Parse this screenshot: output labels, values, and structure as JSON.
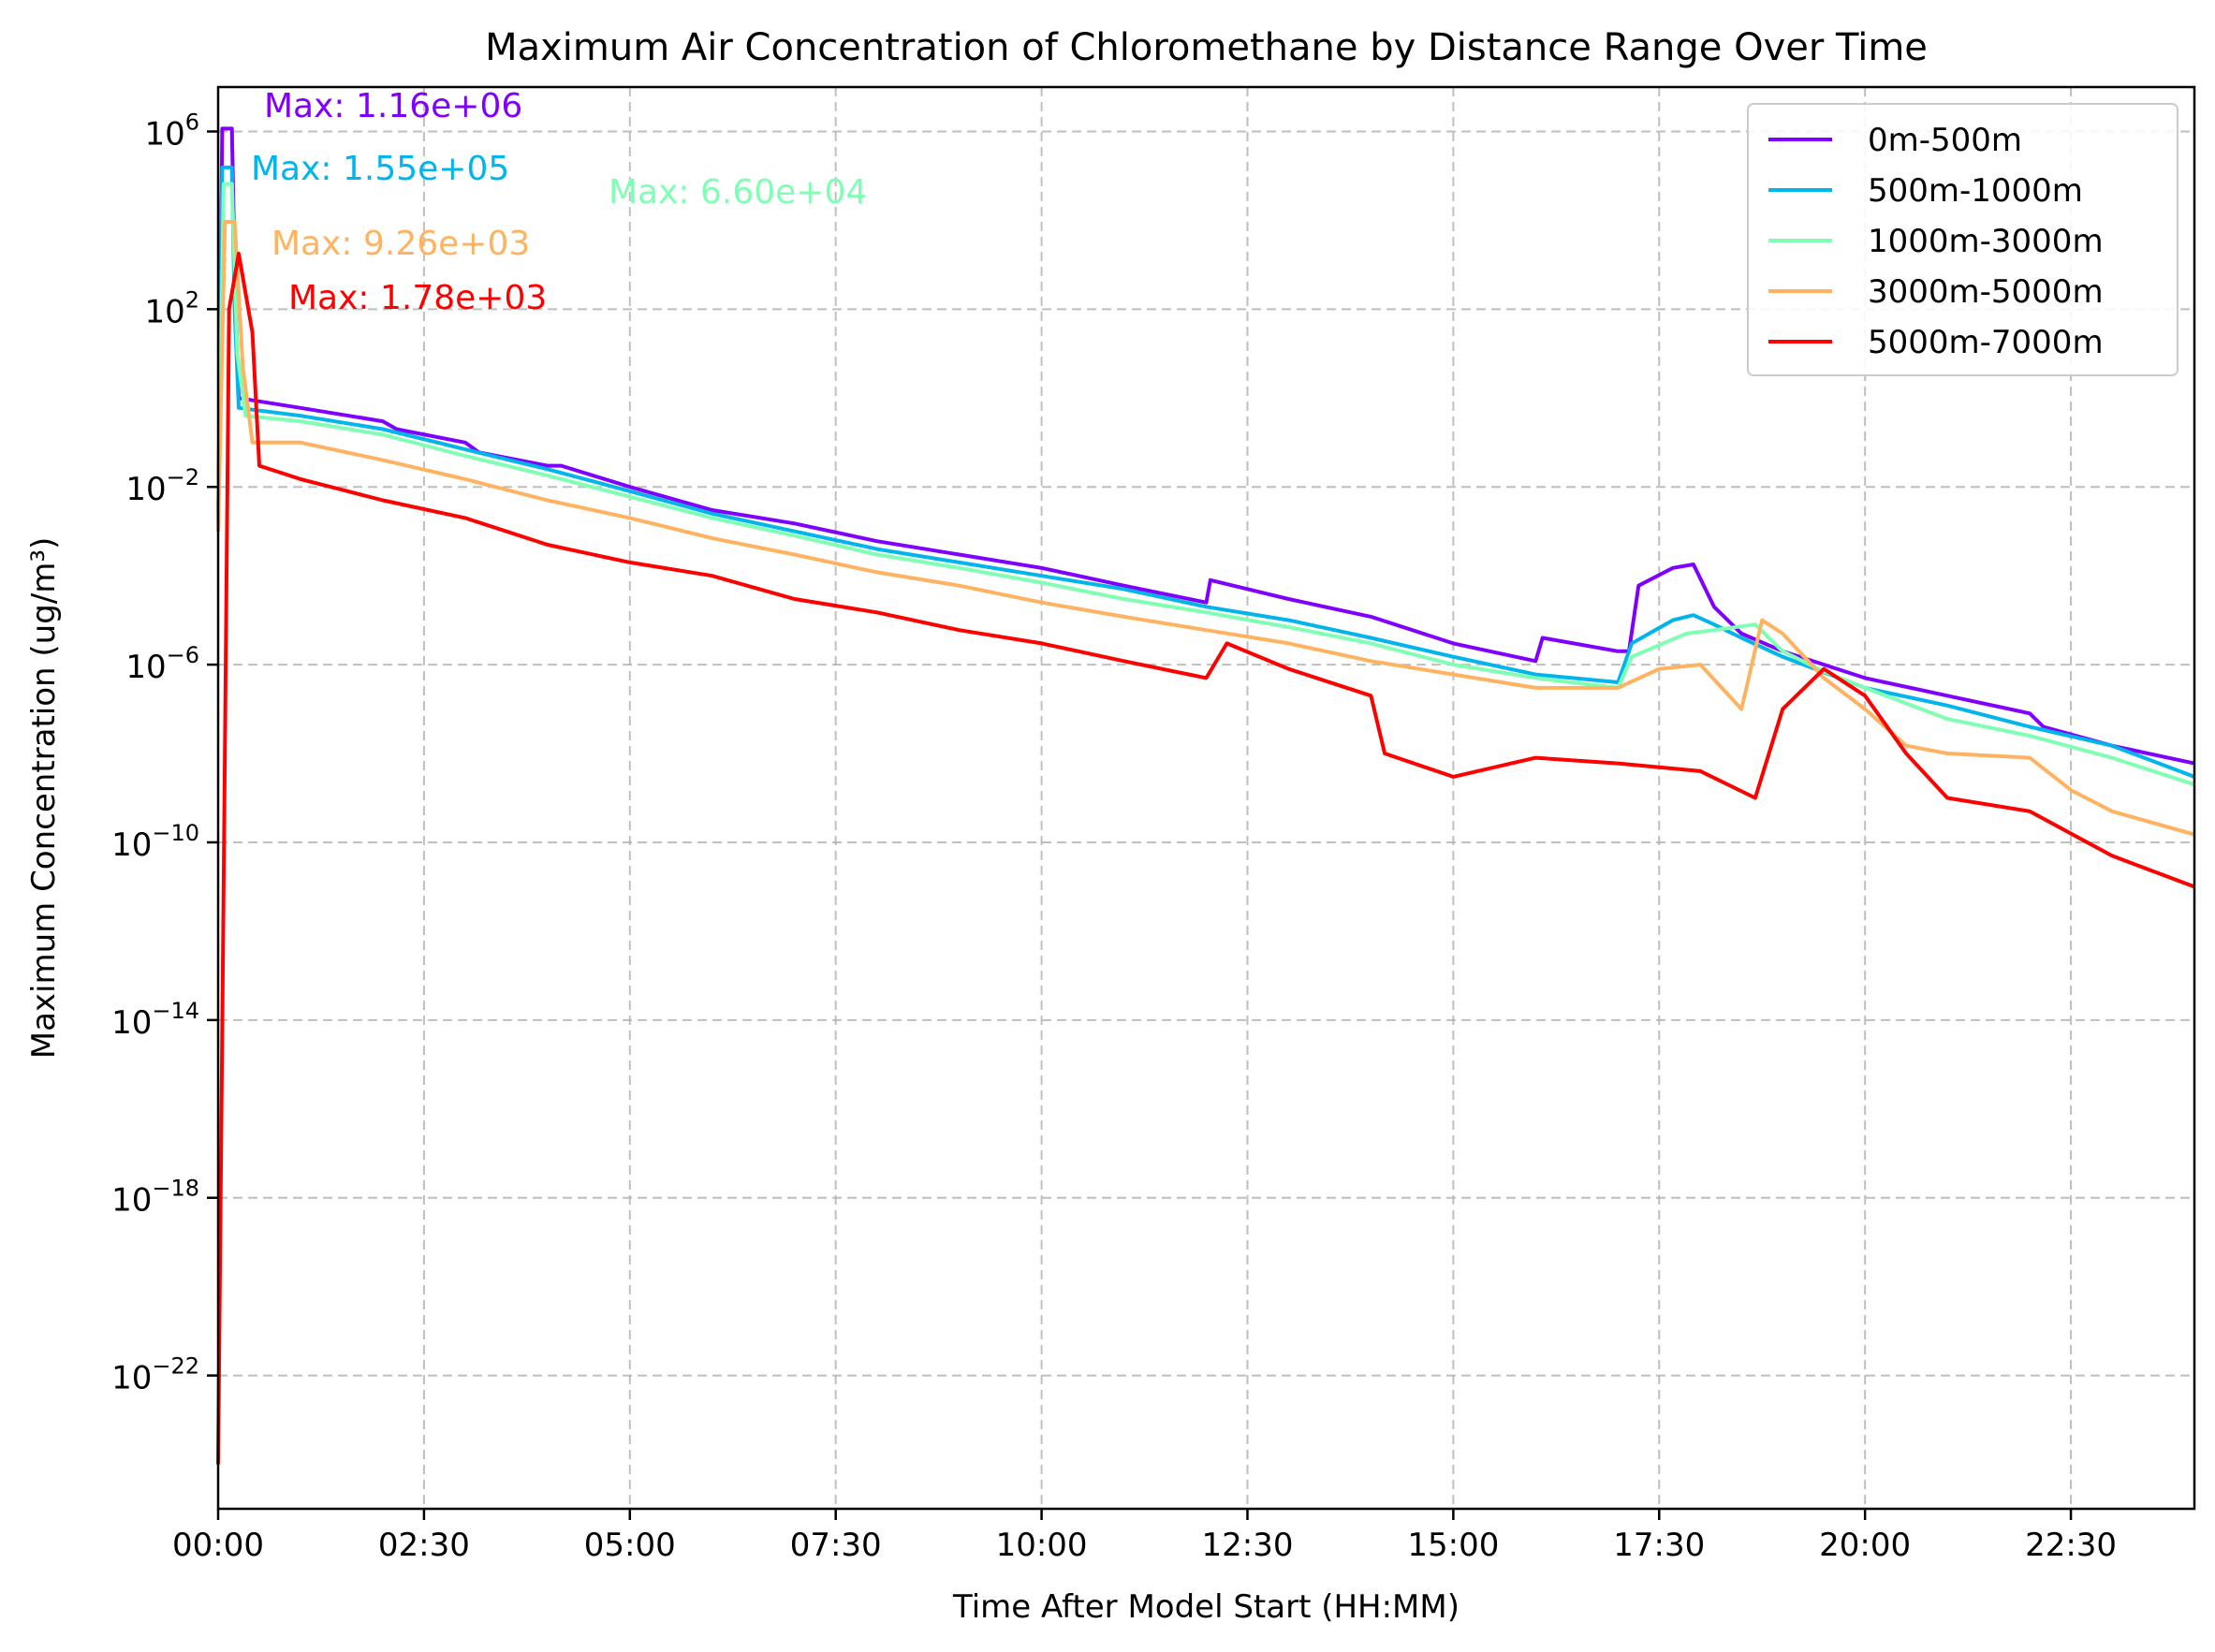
{
  "chart_data": {
    "type": "line",
    "title": "Maximum Air Concentration of Chloromethane by Distance Range Over Time",
    "xlabel": "Time After Model Start (HH:MM)",
    "ylabel": "Maximum Concentration (ug/m³)",
    "yscale": "log",
    "xlim": [
      "00:00",
      "24:00"
    ],
    "ylim": [
      1e-25,
      10000000.0
    ],
    "x_ticks": [
      "00:00",
      "02:30",
      "05:00",
      "07:30",
      "10:00",
      "12:30",
      "15:00",
      "17:30",
      "20:00",
      "22:30"
    ],
    "y_ticks": [
      {
        "base": "10",
        "exp": "6"
      },
      {
        "base": "10",
        "exp": "2"
      },
      {
        "base": "10",
        "exp": "−2"
      },
      {
        "base": "10",
        "exp": "−6"
      },
      {
        "base": "10",
        "exp": "−10"
      },
      {
        "base": "10",
        "exp": "−14"
      },
      {
        "base": "10",
        "exp": "−18"
      },
      {
        "base": "10",
        "exp": "−22"
      }
    ],
    "grid": true,
    "legend_position": "top-right",
    "series": [
      {
        "name": "0m-500m",
        "color": "#8000ff",
        "points": [
          [
            "00:00",
            0.001
          ],
          [
            "00:03",
            1160000.0
          ],
          [
            "00:10",
            1160000.0
          ],
          [
            "00:12",
            1000.0
          ],
          [
            "00:15",
            1
          ],
          [
            "01:00",
            0.6
          ],
          [
            "02:00",
            0.3
          ],
          [
            "02:10",
            0.2
          ],
          [
            "03:00",
            0.1
          ],
          [
            "03:10",
            0.06
          ],
          [
            "04:00",
            0.03
          ],
          [
            "04:10",
            0.03
          ],
          [
            "05:00",
            0.01
          ],
          [
            "06:00",
            0.003
          ],
          [
            "07:00",
            0.0015
          ],
          [
            "08:00",
            0.0006
          ],
          [
            "09:00",
            0.0003
          ],
          [
            "10:00",
            0.00015
          ],
          [
            "11:00",
            6e-05
          ],
          [
            "12:00",
            2.5e-05
          ],
          [
            "12:03",
            8e-05
          ],
          [
            "13:00",
            3e-05
          ],
          [
            "14:00",
            1.2e-05
          ],
          [
            "15:00",
            3e-06
          ],
          [
            "16:00",
            1.2e-06
          ],
          [
            "16:05",
            4e-06
          ],
          [
            "17:00",
            2e-06
          ],
          [
            "17:08",
            2e-06
          ],
          [
            "17:15",
            6e-05
          ],
          [
            "17:40",
            0.00015
          ],
          [
            "17:55",
            0.00018
          ],
          [
            "18:10",
            2e-05
          ],
          [
            "18:30",
            5e-06
          ],
          [
            "19:00",
            2e-06
          ],
          [
            "20:00",
            5e-07
          ],
          [
            "21:00",
            2e-07
          ],
          [
            "22:00",
            8e-08
          ],
          [
            "22:10",
            4e-08
          ],
          [
            "23:00",
            1.5e-08
          ],
          [
            "24:00",
            6e-09
          ]
        ]
      },
      {
        "name": "500m-1000m",
        "color": "#00b5eb",
        "points": [
          [
            "00:00",
            0.001
          ],
          [
            "00:03",
            155000.0
          ],
          [
            "00:10",
            155000.0
          ],
          [
            "00:12",
            100.0
          ],
          [
            "00:15",
            0.6
          ],
          [
            "01:00",
            0.4
          ],
          [
            "02:00",
            0.2
          ],
          [
            "03:00",
            0.07
          ],
          [
            "04:00",
            0.025
          ],
          [
            "05:00",
            0.008
          ],
          [
            "06:00",
            0.0025
          ],
          [
            "07:00",
            0.001
          ],
          [
            "08:00",
            0.0004
          ],
          [
            "09:00",
            0.0002
          ],
          [
            "10:00",
            0.0001
          ],
          [
            "11:00",
            5e-05
          ],
          [
            "12:00",
            2e-05
          ],
          [
            "13:00",
            1e-05
          ],
          [
            "14:00",
            4e-06
          ],
          [
            "15:00",
            1.5e-06
          ],
          [
            "16:00",
            6e-07
          ],
          [
            "17:00",
            4e-07
          ],
          [
            "17:10",
            3e-06
          ],
          [
            "17:40",
            1e-05
          ],
          [
            "17:55",
            1.3e-05
          ],
          [
            "18:10",
            8e-06
          ],
          [
            "18:30",
            4e-06
          ],
          [
            "19:00",
            1.5e-06
          ],
          [
            "20:00",
            3e-07
          ],
          [
            "21:00",
            1.2e-07
          ],
          [
            "22:00",
            4e-08
          ],
          [
            "23:00",
            1.5e-08
          ],
          [
            "24:00",
            3e-09
          ]
        ]
      },
      {
        "name": "1000m-3000m",
        "color": "#80ffb4",
        "points": [
          [
            "00:00",
            0.001
          ],
          [
            "00:04",
            66000.0
          ],
          [
            "00:10",
            66000.0
          ],
          [
            "00:14",
            10
          ],
          [
            "00:20",
            0.4
          ],
          [
            "01:00",
            0.3
          ],
          [
            "02:00",
            0.15
          ],
          [
            "03:00",
            0.05
          ],
          [
            "04:00",
            0.018
          ],
          [
            "05:00",
            0.006
          ],
          [
            "06:00",
            0.002
          ],
          [
            "07:00",
            0.0008
          ],
          [
            "08:00",
            0.0003
          ],
          [
            "09:00",
            0.00015
          ],
          [
            "10:00",
            7e-05
          ],
          [
            "11:00",
            3e-05
          ],
          [
            "12:00",
            1.5e-05
          ],
          [
            "13:00",
            7e-06
          ],
          [
            "14:00",
            3e-06
          ],
          [
            "15:00",
            1e-06
          ],
          [
            "16:00",
            5e-07
          ],
          [
            "17:00",
            3e-07
          ],
          [
            "17:10",
            1.5e-06
          ],
          [
            "17:50",
            5e-06
          ],
          [
            "18:10",
            6e-06
          ],
          [
            "18:40",
            8e-06
          ],
          [
            "19:00",
            2e-06
          ],
          [
            "19:30",
            7e-07
          ],
          [
            "20:00",
            3e-07
          ],
          [
            "21:00",
            6e-08
          ],
          [
            "22:00",
            2.5e-08
          ],
          [
            "23:00",
            8e-09
          ],
          [
            "24:00",
            2e-09
          ]
        ]
      },
      {
        "name": "3000m-5000m",
        "color": "#ffb360",
        "points": [
          [
            "00:00",
            0.001
          ],
          [
            "00:05",
            9260.0
          ],
          [
            "00:12",
            9260.0
          ],
          [
            "00:18",
            5
          ],
          [
            "00:25",
            0.1
          ],
          [
            "01:00",
            0.1
          ],
          [
            "02:00",
            0.04
          ],
          [
            "03:00",
            0.015
          ],
          [
            "04:00",
            0.005
          ],
          [
            "05:00",
            0.002
          ],
          [
            "06:00",
            0.0007
          ],
          [
            "07:00",
            0.0003
          ],
          [
            "08:00",
            0.00012
          ],
          [
            "09:00",
            6e-05
          ],
          [
            "10:00",
            2.5e-05
          ],
          [
            "11:00",
            1.2e-05
          ],
          [
            "12:00",
            6e-06
          ],
          [
            "13:00",
            3e-06
          ],
          [
            "14:00",
            1.2e-06
          ],
          [
            "15:00",
            6e-07
          ],
          [
            "16:00",
            3e-07
          ],
          [
            "17:00",
            3e-07
          ],
          [
            "17:30",
            8e-07
          ],
          [
            "18:00",
            1e-06
          ],
          [
            "18:30",
            1e-07
          ],
          [
            "18:45",
            1e-05
          ],
          [
            "19:00",
            5e-06
          ],
          [
            "19:30",
            5e-07
          ],
          [
            "20:00",
            1e-07
          ],
          [
            "20:30",
            1.5e-08
          ],
          [
            "21:00",
            1e-08
          ],
          [
            "22:00",
            8e-09
          ],
          [
            "22:30",
            1.5e-09
          ],
          [
            "23:00",
            5e-10
          ],
          [
            "24:00",
            1.5e-10
          ]
        ]
      },
      {
        "name": "5000m-7000m",
        "color": "#ff0000",
        "points": [
          [
            "00:00",
            1e-24
          ],
          [
            "00:08",
            100.0
          ],
          [
            "00:15",
            1780.0
          ],
          [
            "00:25",
            30
          ],
          [
            "00:30",
            0.03
          ],
          [
            "01:00",
            0.015
          ],
          [
            "02:00",
            0.005
          ],
          [
            "03:00",
            0.002
          ],
          [
            "04:00",
            0.0005
          ],
          [
            "05:00",
            0.0002
          ],
          [
            "06:00",
            0.0001
          ],
          [
            "07:00",
            3e-05
          ],
          [
            "08:00",
            1.5e-05
          ],
          [
            "09:00",
            6e-06
          ],
          [
            "10:00",
            3e-06
          ],
          [
            "11:00",
            1.2e-06
          ],
          [
            "12:00",
            5e-07
          ],
          [
            "12:15",
            3e-06
          ],
          [
            "13:00",
            8e-07
          ],
          [
            "14:00",
            2e-07
          ],
          [
            "14:10",
            1e-08
          ],
          [
            "15:00",
            3e-09
          ],
          [
            "16:00",
            8e-09
          ],
          [
            "17:00",
            6e-09
          ],
          [
            "18:00",
            4e-09
          ],
          [
            "18:40",
            1e-09
          ],
          [
            "19:00",
            1e-07
          ],
          [
            "19:30",
            8e-07
          ],
          [
            "20:00",
            2e-07
          ],
          [
            "20:30",
            1e-08
          ],
          [
            "21:00",
            1e-09
          ],
          [
            "22:00",
            5e-10
          ],
          [
            "23:00",
            5e-11
          ],
          [
            "24:00",
            1e-11
          ]
        ]
      }
    ],
    "annotations": [
      {
        "text": "Max: 1.16e+06",
        "color": "#8000ff"
      },
      {
        "text": "Max: 1.55e+05",
        "color": "#00b5eb"
      },
      {
        "text": "Max: 6.60e+04",
        "color": "#80ffb4"
      },
      {
        "text": "Max: 9.26e+03",
        "color": "#ffb360"
      },
      {
        "text": "Max: 1.78e+03",
        "color": "#ff0000"
      }
    ]
  }
}
